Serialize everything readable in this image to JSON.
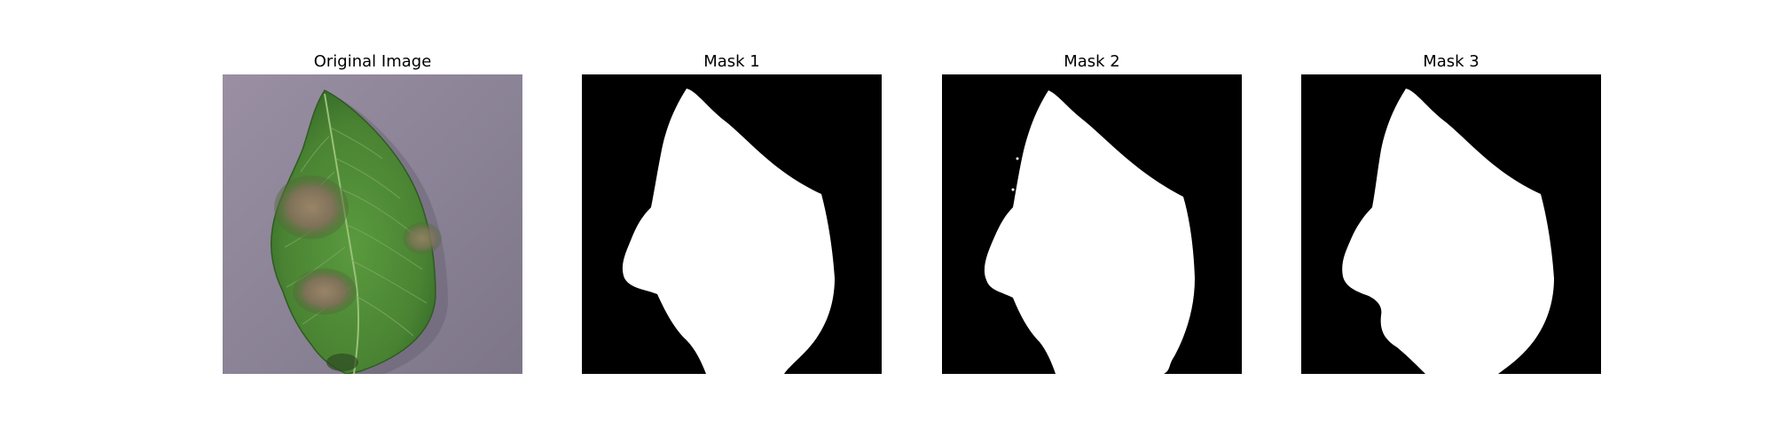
{
  "figure": {
    "panels": [
      {
        "title": "Original Image"
      },
      {
        "title": "Mask 1"
      },
      {
        "title": "Mask 2"
      },
      {
        "title": "Mask 3"
      }
    ],
    "colors": {
      "background_surface": "#8d8596",
      "leaf": "#4d8a35",
      "leaf_dark": "#35662a",
      "lesion": "#8a7a62",
      "mask_background": "#000000",
      "mask_foreground": "#ffffff"
    }
  }
}
